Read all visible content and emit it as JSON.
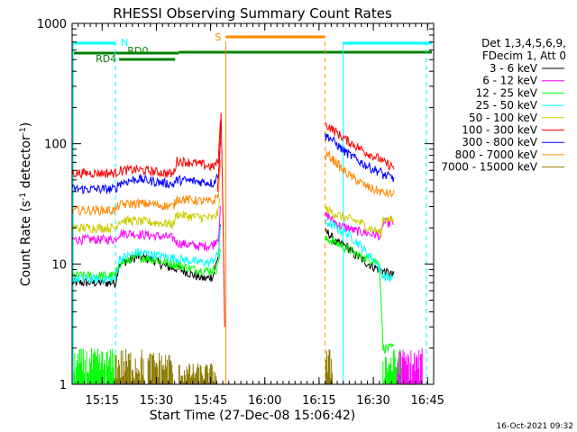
{
  "chart_data": {
    "type": "line",
    "title": "RHESSI Observing Summary Count Rates",
    "xlabel": "Start Time (27-Dec-08 15:06:42)",
    "ylabel": "Count Rate (s⁻¹ detector⁻¹)",
    "ylabel_main": "Count Rate (s",
    "ylabel_sup1": "-1",
    "ylabel_mid": " detector",
    "ylabel_sup2": "-1",
    "ylabel_end": ")",
    "yscale": "log",
    "ylim": [
      1,
      1000
    ],
    "xlim_minutes": [
      0,
      100
    ],
    "y_ticks": [
      {
        "value": 1,
        "label": "1"
      },
      {
        "value": 10,
        "label": "10"
      },
      {
        "value": 100,
        "label": "100"
      },
      {
        "value": 1000,
        "label": "1000"
      }
    ],
    "x_ticks": [
      {
        "minutes": 8.3,
        "label": "15:15"
      },
      {
        "minutes": 23.3,
        "label": "15:30"
      },
      {
        "minutes": 38.3,
        "label": "15:45"
      },
      {
        "minutes": 53.3,
        "label": "16:00"
      },
      {
        "minutes": 68.3,
        "label": "16:15"
      },
      {
        "minutes": 83.3,
        "label": "16:30"
      },
      {
        "minutes": 98.3,
        "label": "16:45"
      }
    ],
    "legend_header": [
      "Det 1,3,4,5,6,9,",
      "FDecim 1, Att 0"
    ],
    "legend_position": "right",
    "data_gap_minutes": [
      41,
      70
    ],
    "series": [
      {
        "name": "3 - 6 keV",
        "color": "#000000",
        "x": [
          0,
          12,
          13,
          18,
          22,
          26,
          30,
          32,
          34,
          37,
          39,
          40.5,
          41,
          71,
          73,
          76,
          78,
          80,
          82,
          85,
          87,
          89
        ],
        "y": [
          7,
          7,
          10,
          11.5,
          11,
          9.5,
          9,
          8.5,
          8,
          7.5,
          8,
          12,
          22,
          18,
          15,
          14,
          12,
          11,
          10,
          9,
          8.5,
          8
        ]
      },
      {
        "name": "6 - 12 keV",
        "color": "#ff00ff",
        "x": [
          0,
          12,
          13,
          16,
          20,
          24,
          28,
          29,
          32,
          36,
          39,
          40.5,
          41,
          71,
          72,
          74,
          76,
          78,
          80,
          82,
          84,
          85.5,
          86,
          87,
          88,
          89
        ],
        "y": [
          16,
          16,
          18,
          18,
          17.5,
          17,
          16.5,
          15,
          14.5,
          14,
          14.5,
          17,
          28,
          25,
          23,
          21,
          20,
          19,
          18.5,
          18,
          17.5,
          17,
          22,
          22,
          22,
          22
        ]
      },
      {
        "name": "12 - 25 keV",
        "color": "#00ff00",
        "x": [
          0,
          12,
          13,
          18,
          22,
          25,
          28,
          31,
          34,
          37,
          40,
          41,
          71,
          73,
          76,
          78,
          80,
          82,
          84,
          85,
          86,
          87,
          89
        ],
        "y": [
          8,
          8,
          10,
          11.5,
          11,
          10.5,
          10,
          9.5,
          9,
          8.8,
          9,
          13,
          16,
          15,
          13.5,
          12.5,
          11.5,
          11,
          10.5,
          10,
          2,
          2,
          2
        ]
      },
      {
        "name": "25 - 50 keV",
        "color": "#00ffff",
        "x": [
          0,
          12,
          13,
          18,
          22,
          26,
          30,
          34,
          38,
          40.5,
          41,
          71,
          73,
          76,
          78,
          80,
          82,
          84,
          86,
          89
        ],
        "y": [
          7.5,
          7.5,
          11,
          12.5,
          12,
          11.5,
          11,
          10.5,
          10.2,
          12,
          21,
          22,
          20,
          18,
          16,
          14,
          12,
          10.5,
          8,
          7.5
        ]
      },
      {
        "name": "50 - 100 keV",
        "color": "#cccc00",
        "x": [
          0,
          12,
          13,
          16,
          20,
          24,
          28,
          29,
          32,
          36,
          39,
          40.5,
          41,
          71,
          73,
          76,
          78,
          80,
          82,
          84,
          85.5,
          86,
          89
        ],
        "y": [
          20,
          20,
          23,
          23,
          22.5,
          22,
          21.5,
          26,
          25,
          24.5,
          24,
          27,
          38,
          28,
          26,
          24,
          23,
          22,
          20,
          19,
          18,
          24,
          23
        ]
      },
      {
        "name": "100 - 300 keV",
        "color": "#ff0000",
        "x": [
          0,
          12,
          13,
          18,
          22,
          26,
          28,
          29,
          33,
          37,
          39,
          40.5,
          41,
          71,
          73,
          75,
          77,
          79,
          81,
          83,
          85.5,
          86,
          89
        ],
        "y": [
          57,
          57,
          60,
          61,
          59,
          57,
          56,
          72,
          70,
          66,
          64,
          72,
          170,
          140,
          125,
          112,
          102,
          94,
          86,
          80,
          74,
          70,
          64
        ]
      },
      {
        "name": "300 - 800 keV",
        "color": "#0000ff",
        "x": [
          0,
          12,
          13,
          18,
          22,
          26,
          28,
          29,
          33,
          37,
          39,
          40.5,
          41,
          71,
          73,
          75,
          77,
          79,
          81,
          83,
          85.5,
          86,
          89
        ],
        "y": [
          42,
          42,
          47,
          51,
          49,
          47,
          46,
          50,
          49,
          48,
          47,
          55,
          110,
          115,
          100,
          88,
          80,
          73,
          67,
          62,
          58,
          55,
          52
        ]
      },
      {
        "name": "800 - 7000 keV",
        "color": "#ff8800",
        "x": [
          0,
          12,
          13,
          18,
          22,
          26,
          28,
          29,
          33,
          37,
          39,
          40.5,
          41,
          71,
          73,
          75,
          77,
          79,
          81,
          83,
          85.5,
          86,
          89
        ],
        "y": [
          28,
          28,
          31,
          32,
          31.5,
          30.5,
          30,
          35,
          34,
          33,
          33,
          38,
          70,
          80,
          70,
          60,
          54,
          49,
          45,
          42,
          40,
          39,
          38
        ]
      },
      {
        "name": "7000 - 15000 keV",
        "color": "#8b7a00",
        "x": [
          12,
          13,
          20,
          28,
          29,
          36,
          40
        ],
        "y": [
          1.5,
          1.5,
          1.5,
          1.5,
          1.5,
          1.5,
          1.5
        ]
      }
    ],
    "annotations": [
      {
        "label": "N",
        "color": "#00ffff",
        "x_start": 0,
        "x_end": 12
      },
      {
        "label": "S",
        "color": "#ff8800",
        "x_start": 42.5,
        "x_end": 70
      },
      {
        "label": "RD0",
        "color": "#008000"
      },
      {
        "label": "RD4",
        "color": "#008000"
      }
    ]
  },
  "footer": {
    "date_stamp": "16-Oct-2021 09:32"
  }
}
